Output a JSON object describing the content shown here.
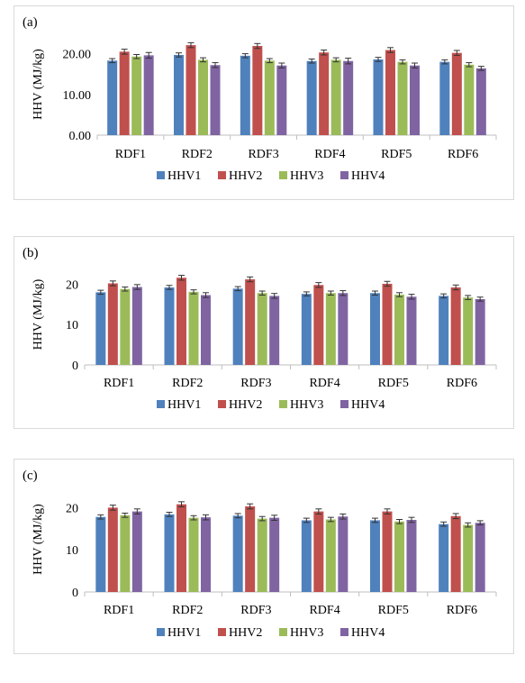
{
  "panels": [
    {
      "label": "(a)"
    },
    {
      "label": "(b)"
    },
    {
      "label": "(c)"
    }
  ],
  "colors": {
    "HHV1": "#4f81bd",
    "HHV2": "#c0504d",
    "HHV3": "#9bbb59",
    "HHV4": "#8064a2"
  },
  "chart_data": [
    {
      "type": "bar",
      "title": "",
      "xlabel": "",
      "ylabel": "HHV (MJ/kg)",
      "ylim": [
        0,
        25
      ],
      "yticks": [
        "0.00",
        "10.00",
        "20.00"
      ],
      "ytick_values": [
        0,
        10,
        20
      ],
      "grid": false,
      "legend": "bottom",
      "error_bars": true,
      "categories": [
        "RDF1",
        "RDF2",
        "RDF3",
        "RDF4",
        "RDF5",
        "RDF6"
      ],
      "series": [
        {
          "name": "HHV1",
          "values": [
            18.3,
            19.7,
            19.5,
            18.2,
            18.6,
            18.0
          ],
          "errors": [
            0.5,
            0.5,
            0.5,
            0.5,
            0.5,
            0.5
          ]
        },
        {
          "name": "HHV2",
          "values": [
            20.5,
            22.1,
            21.9,
            20.3,
            20.9,
            20.2
          ],
          "errors": [
            0.6,
            0.6,
            0.6,
            0.6,
            0.6,
            0.6
          ]
        },
        {
          "name": "HHV3",
          "values": [
            19.3,
            18.5,
            18.3,
            18.5,
            18.0,
            17.3
          ],
          "errors": [
            0.5,
            0.5,
            0.5,
            0.5,
            0.5,
            0.5
          ]
        },
        {
          "name": "HHV4",
          "values": [
            19.6,
            17.2,
            17.1,
            18.2,
            17.1,
            16.4
          ],
          "errors": [
            0.7,
            0.6,
            0.6,
            0.7,
            0.6,
            0.5
          ]
        }
      ]
    },
    {
      "type": "bar",
      "title": "",
      "xlabel": "",
      "ylabel": "HHV (MJ/kg)",
      "ylim": [
        0,
        25
      ],
      "yticks": [
        "0",
        "10",
        "20"
      ],
      "ytick_values": [
        0,
        10,
        20
      ],
      "grid": false,
      "legend": "bottom",
      "error_bars": true,
      "categories": [
        "RDF1",
        "RDF2",
        "RDF3",
        "RDF4",
        "RDF5",
        "RDF6"
      ],
      "series": [
        {
          "name": "HHV1",
          "values": [
            18.0,
            19.2,
            18.9,
            17.6,
            17.8,
            17.1
          ],
          "errors": [
            0.5,
            0.5,
            0.5,
            0.5,
            0.5,
            0.5
          ]
        },
        {
          "name": "HHV2",
          "values": [
            20.2,
            21.6,
            21.2,
            19.8,
            20.1,
            19.2
          ],
          "errors": [
            0.6,
            0.6,
            0.6,
            0.6,
            0.6,
            0.6
          ]
        },
        {
          "name": "HHV3",
          "values": [
            18.8,
            18.1,
            17.8,
            17.8,
            17.4,
            16.7
          ],
          "errors": [
            0.5,
            0.5,
            0.5,
            0.5,
            0.5,
            0.5
          ]
        },
        {
          "name": "HHV4",
          "values": [
            19.3,
            17.3,
            17.1,
            17.8,
            16.9,
            16.3
          ],
          "errors": [
            0.6,
            0.6,
            0.6,
            0.6,
            0.6,
            0.5
          ]
        }
      ]
    },
    {
      "type": "bar",
      "title": "",
      "xlabel": "",
      "ylabel": "HHV (MJ/kg)",
      "ylim": [
        0,
        25
      ],
      "yticks": [
        "0",
        "10",
        "20"
      ],
      "ytick_values": [
        0,
        10,
        20
      ],
      "grid": false,
      "legend": "bottom",
      "error_bars": true,
      "categories": [
        "RDF1",
        "RDF2",
        "RDF3",
        "RDF4",
        "RDF5",
        "RDF6"
      ],
      "series": [
        {
          "name": "HHV1",
          "values": [
            17.8,
            18.4,
            18.1,
            17.0,
            17.0,
            16.1
          ],
          "errors": [
            0.5,
            0.5,
            0.5,
            0.5,
            0.5,
            0.5
          ]
        },
        {
          "name": "HHV2",
          "values": [
            20.0,
            20.8,
            20.3,
            19.1,
            19.1,
            18.0
          ],
          "errors": [
            0.6,
            0.6,
            0.6,
            0.6,
            0.6,
            0.6
          ]
        },
        {
          "name": "HHV3",
          "values": [
            18.2,
            17.6,
            17.4,
            17.2,
            16.7,
            15.9
          ],
          "errors": [
            0.5,
            0.5,
            0.5,
            0.5,
            0.5,
            0.5
          ]
        },
        {
          "name": "HHV4",
          "values": [
            19.1,
            17.7,
            17.6,
            17.9,
            17.1,
            16.4
          ],
          "errors": [
            0.6,
            0.6,
            0.6,
            0.6,
            0.6,
            0.5
          ]
        }
      ]
    }
  ]
}
